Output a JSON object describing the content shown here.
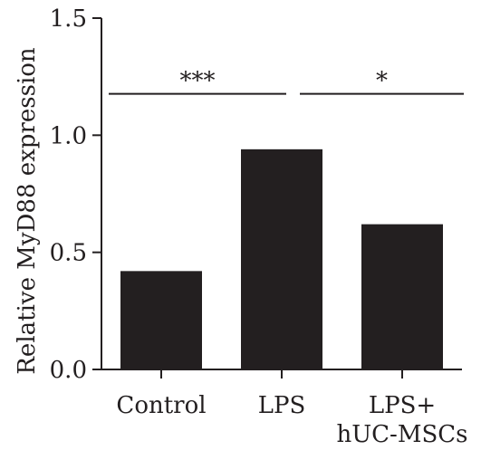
{
  "chart_data": {
    "type": "bar",
    "title": "",
    "xlabel": "",
    "ylabel": "Relative MyD88 expression",
    "ylim": [
      0,
      1.5
    ],
    "yticks": [
      0.0,
      0.5,
      1.0,
      1.5
    ],
    "ytick_labels": [
      "0.0",
      "0.5",
      "1.0",
      "1.5"
    ],
    "categories": [
      {
        "lines": [
          "Control"
        ]
      },
      {
        "lines": [
          "LPS"
        ]
      },
      {
        "lines": [
          "LPS+",
          "hUC-MSCs"
        ]
      }
    ],
    "values": [
      0.42,
      0.94,
      0.62
    ],
    "bar_color": "#231f20",
    "axis_color": "#231f20",
    "significance": [
      {
        "from": 0,
        "to": 1,
        "label": "***",
        "y": 1.2
      },
      {
        "from": 1,
        "to": 2,
        "label": "*",
        "y": 1.2
      }
    ]
  }
}
